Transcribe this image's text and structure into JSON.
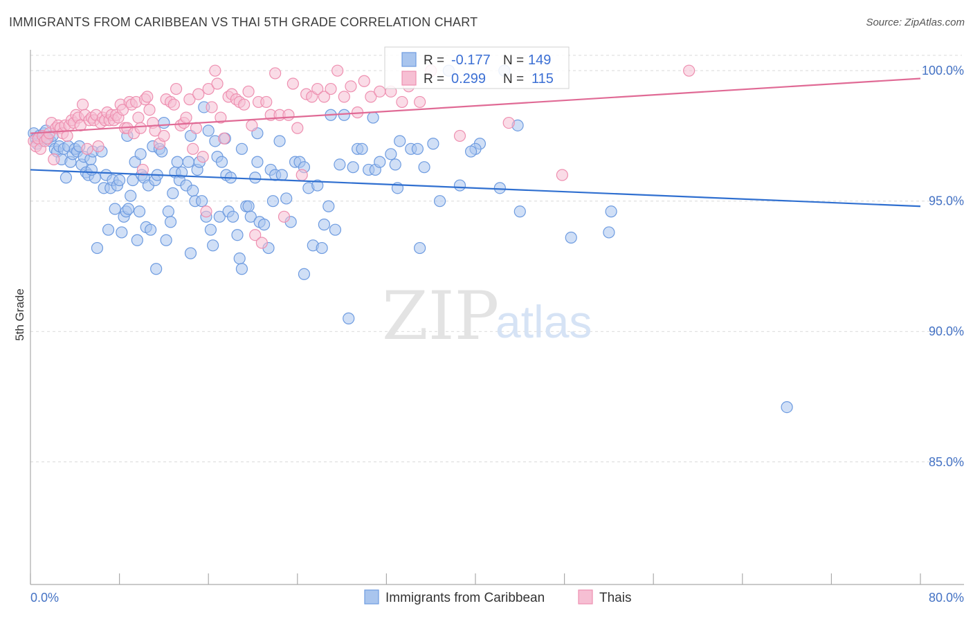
{
  "title": "IMMIGRANTS FROM CARIBBEAN VS THAI 5TH GRADE CORRELATION CHART",
  "source": "Source: ZipAtlas.com",
  "watermark": {
    "zip": "ZIP",
    "atlas": "atlas"
  },
  "colors": {
    "caribbean_fill": "#a9c5ee",
    "caribbean_stroke": "#6d9be0",
    "caribbean_line": "#2f6fd0",
    "thai_fill": "#f6bfd3",
    "thai_stroke": "#ee8fb0",
    "thai_line": "#e06a95",
    "grid": "#d9d9d9",
    "tick_text": "#4472c4"
  },
  "stats": {
    "r_label": "R =",
    "n_label": "N =",
    "caribbean": {
      "r": "-0.177",
      "n": "149"
    },
    "thai": {
      "r": "0.299",
      "n": "115"
    }
  },
  "chart_data": {
    "type": "scatter",
    "title": "IMMIGRANTS FROM CARIBBEAN VS THAI 5TH GRADE CORRELATION CHART",
    "xlabel": "",
    "ylabel": "5th Grade",
    "xlim": [
      0,
      80
    ],
    "ylim": [
      80.3,
      100.8
    ],
    "x_tick_labels": [
      "0.0%",
      "80.0%"
    ],
    "y_ticks": [
      {
        "value": 85,
        "label": "85.0%"
      },
      {
        "value": 90,
        "label": "90.0%"
      },
      {
        "value": 95,
        "label": "95.0%"
      },
      {
        "value": 100,
        "label": "100.0%"
      }
    ],
    "grid": true,
    "legend_position": "bottom-center",
    "series": [
      {
        "name": "Immigrants from Caribbean",
        "trend": {
          "x": [
            0,
            80
          ],
          "y": [
            96.2,
            94.8
          ]
        },
        "points": [
          [
            0.3,
            97.6
          ],
          [
            0.5,
            97.4
          ],
          [
            0.6,
            97.2
          ],
          [
            0.8,
            97.5
          ],
          [
            1.0,
            97.3
          ],
          [
            1.2,
            97.6
          ],
          [
            1.4,
            97.7
          ],
          [
            1.6,
            97.4
          ],
          [
            1.8,
            97.3
          ],
          [
            2.0,
            97.5
          ],
          [
            2.2,
            97.0
          ],
          [
            2.4,
            96.9
          ],
          [
            2.6,
            97.1
          ],
          [
            2.8,
            96.6
          ],
          [
            3.0,
            97.0
          ],
          [
            3.2,
            95.9
          ],
          [
            3.4,
            97.1
          ],
          [
            3.6,
            96.5
          ],
          [
            3.8,
            96.8
          ],
          [
            4.0,
            97.0
          ],
          [
            4.2,
            96.9
          ],
          [
            4.4,
            97.1
          ],
          [
            4.6,
            96.4
          ],
          [
            4.8,
            96.7
          ],
          [
            5.0,
            96.1
          ],
          [
            5.2,
            96.0
          ],
          [
            5.4,
            96.6
          ],
          [
            5.6,
            96.9
          ],
          [
            5.8,
            95.9
          ],
          [
            6.0,
            93.2
          ],
          [
            6.4,
            96.9
          ],
          [
            6.6,
            95.5
          ],
          [
            6.8,
            96.0
          ],
          [
            7.0,
            93.9
          ],
          [
            7.2,
            95.5
          ],
          [
            7.4,
            95.8
          ],
          [
            7.6,
            94.7
          ],
          [
            7.8,
            95.6
          ],
          [
            8.0,
            95.8
          ],
          [
            8.2,
            93.8
          ],
          [
            8.4,
            94.4
          ],
          [
            8.6,
            94.6
          ],
          [
            8.8,
            94.7
          ],
          [
            9.0,
            95.2
          ],
          [
            9.2,
            95.8
          ],
          [
            9.4,
            96.5
          ],
          [
            9.6,
            93.5
          ],
          [
            9.8,
            94.6
          ],
          [
            10.0,
            96.0
          ],
          [
            10.2,
            95.9
          ],
          [
            10.4,
            94.0
          ],
          [
            10.6,
            95.6
          ],
          [
            10.8,
            93.9
          ],
          [
            11.0,
            97.1
          ],
          [
            11.2,
            95.8
          ],
          [
            11.4,
            96.0
          ],
          [
            11.6,
            97.0
          ],
          [
            11.8,
            96.9
          ],
          [
            12.0,
            98.0
          ],
          [
            12.2,
            93.5
          ],
          [
            12.4,
            94.6
          ],
          [
            12.6,
            94.2
          ],
          [
            12.8,
            95.3
          ],
          [
            13.0,
            96.1
          ],
          [
            13.2,
            96.5
          ],
          [
            13.4,
            95.8
          ],
          [
            13.6,
            96.1
          ],
          [
            14.0,
            95.6
          ],
          [
            14.2,
            96.5
          ],
          [
            14.4,
            97.5
          ],
          [
            14.6,
            95.4
          ],
          [
            14.8,
            95.0
          ],
          [
            15.0,
            96.2
          ],
          [
            15.2,
            96.5
          ],
          [
            15.4,
            95.0
          ],
          [
            15.6,
            98.6
          ],
          [
            15.8,
            94.4
          ],
          [
            16.0,
            97.7
          ],
          [
            16.2,
            93.9
          ],
          [
            16.4,
            93.3
          ],
          [
            16.6,
            97.3
          ],
          [
            16.8,
            96.7
          ],
          [
            17.0,
            94.4
          ],
          [
            17.2,
            96.5
          ],
          [
            17.6,
            96.0
          ],
          [
            17.8,
            94.6
          ],
          [
            18.0,
            95.9
          ],
          [
            18.2,
            94.4
          ],
          [
            18.6,
            93.7
          ],
          [
            18.8,
            92.8
          ],
          [
            19.0,
            97.0
          ],
          [
            19.4,
            94.8
          ],
          [
            19.6,
            94.8
          ],
          [
            19.8,
            94.4
          ],
          [
            20.2,
            95.9
          ],
          [
            20.4,
            96.5
          ],
          [
            20.6,
            94.2
          ],
          [
            21.0,
            94.1
          ],
          [
            21.4,
            93.2
          ],
          [
            21.6,
            96.2
          ],
          [
            22.0,
            96.0
          ],
          [
            22.4,
            97.3
          ],
          [
            22.6,
            96.0
          ],
          [
            23.0,
            95.1
          ],
          [
            23.4,
            94.2
          ],
          [
            23.8,
            96.5
          ],
          [
            24.2,
            96.5
          ],
          [
            24.6,
            96.3
          ],
          [
            25.0,
            95.5
          ],
          [
            25.4,
            93.3
          ],
          [
            25.8,
            95.6
          ],
          [
            26.4,
            94.1
          ],
          [
            26.8,
            94.8
          ],
          [
            27.0,
            98.3
          ],
          [
            27.4,
            93.9
          ],
          [
            27.8,
            96.4
          ],
          [
            28.2,
            98.3
          ],
          [
            28.6,
            90.5
          ],
          [
            29.0,
            96.3
          ],
          [
            29.4,
            97.0
          ],
          [
            29.8,
            97.0
          ],
          [
            30.4,
            96.2
          ],
          [
            31.0,
            96.2
          ],
          [
            31.4,
            96.5
          ],
          [
            32.4,
            96.8
          ],
          [
            32.8,
            96.4
          ],
          [
            33.2,
            97.3
          ],
          [
            34.2,
            97.0
          ],
          [
            34.8,
            97.0
          ],
          [
            35.4,
            96.3
          ],
          [
            36.2,
            97.2
          ],
          [
            36.8,
            95.0
          ],
          [
            37.6,
            100.0
          ],
          [
            38.6,
            95.6
          ],
          [
            40.4,
            97.2
          ],
          [
            40.0,
            97.0
          ],
          [
            42.2,
            95.5
          ],
          [
            42.6,
            100.0
          ],
          [
            43.8,
            97.9
          ],
          [
            48.6,
            93.6
          ],
          [
            52.0,
            93.8
          ],
          [
            52.2,
            94.6
          ],
          [
            68.0,
            87.1
          ],
          [
            24.6,
            92.2
          ],
          [
            11.3,
            92.4
          ],
          [
            21.8,
            95.0
          ],
          [
            19.0,
            92.4
          ],
          [
            26.2,
            93.2
          ],
          [
            33.0,
            95.5
          ],
          [
            44.0,
            94.6
          ],
          [
            14.4,
            93.0
          ],
          [
            8.7,
            97.5
          ],
          [
            20.4,
            97.6
          ],
          [
            30.8,
            98.2
          ],
          [
            39.6,
            96.9
          ],
          [
            17.5,
            97.4
          ],
          [
            9.9,
            96.8
          ],
          [
            5.5,
            96.2
          ],
          [
            35.0,
            93.2
          ]
        ]
      },
      {
        "name": "Thais",
        "trend": {
          "x": [
            0,
            80
          ],
          "y": [
            97.6,
            99.7
          ]
        },
        "points": [
          [
            0.3,
            97.3
          ],
          [
            0.5,
            97.1
          ],
          [
            0.7,
            97.4
          ],
          [
            0.9,
            97.0
          ],
          [
            1.1,
            97.5
          ],
          [
            1.3,
            97.3
          ],
          [
            1.5,
            97.4
          ],
          [
            1.7,
            97.6
          ],
          [
            1.9,
            98.0
          ],
          [
            2.1,
            96.6
          ],
          [
            2.3,
            97.8
          ],
          [
            2.5,
            97.9
          ],
          [
            2.7,
            97.8
          ],
          [
            2.9,
            97.6
          ],
          [
            3.1,
            97.9
          ],
          [
            3.3,
            97.5
          ],
          [
            3.5,
            97.9
          ],
          [
            3.7,
            98.1
          ],
          [
            3.9,
            98.0
          ],
          [
            4.1,
            98.3
          ],
          [
            4.3,
            98.2
          ],
          [
            4.5,
            97.9
          ],
          [
            4.7,
            98.7
          ],
          [
            4.9,
            98.3
          ],
          [
            5.1,
            97.0
          ],
          [
            5.3,
            98.1
          ],
          [
            5.5,
            98.2
          ],
          [
            5.7,
            98.1
          ],
          [
            5.9,
            98.3
          ],
          [
            6.1,
            97.1
          ],
          [
            6.3,
            98.0
          ],
          [
            6.5,
            98.2
          ],
          [
            6.7,
            98.1
          ],
          [
            6.9,
            98.4
          ],
          [
            7.1,
            98.1
          ],
          [
            7.3,
            98.3
          ],
          [
            7.5,
            98.1
          ],
          [
            7.7,
            98.3
          ],
          [
            7.9,
            98.2
          ],
          [
            8.1,
            98.7
          ],
          [
            8.3,
            98.5
          ],
          [
            8.5,
            97.8
          ],
          [
            8.7,
            97.8
          ],
          [
            8.9,
            98.8
          ],
          [
            9.1,
            98.7
          ],
          [
            9.3,
            97.6
          ],
          [
            9.5,
            98.8
          ],
          [
            9.7,
            98.2
          ],
          [
            9.9,
            97.8
          ],
          [
            10.1,
            96.2
          ],
          [
            10.3,
            98.9
          ],
          [
            10.5,
            99.0
          ],
          [
            10.7,
            98.5
          ],
          [
            11.0,
            98.0
          ],
          [
            11.2,
            97.7
          ],
          [
            11.6,
            97.2
          ],
          [
            12.0,
            97.5
          ],
          [
            12.2,
            98.9
          ],
          [
            12.6,
            98.8
          ],
          [
            12.9,
            98.7
          ],
          [
            13.1,
            99.3
          ],
          [
            13.5,
            97.9
          ],
          [
            13.8,
            98.0
          ],
          [
            14.0,
            98.2
          ],
          [
            14.3,
            98.9
          ],
          [
            14.6,
            97.0
          ],
          [
            14.9,
            97.8
          ],
          [
            15.1,
            99.1
          ],
          [
            15.5,
            96.7
          ],
          [
            15.8,
            94.6
          ],
          [
            16.0,
            99.3
          ],
          [
            16.3,
            98.6
          ],
          [
            16.6,
            100.0
          ],
          [
            16.8,
            99.5
          ],
          [
            17.1,
            98.2
          ],
          [
            17.4,
            97.4
          ],
          [
            17.8,
            99.0
          ],
          [
            18.1,
            99.1
          ],
          [
            18.5,
            98.9
          ],
          [
            18.8,
            98.8
          ],
          [
            19.2,
            98.7
          ],
          [
            19.6,
            99.2
          ],
          [
            19.9,
            97.9
          ],
          [
            20.2,
            93.7
          ],
          [
            20.5,
            98.8
          ],
          [
            20.8,
            93.4
          ],
          [
            21.2,
            98.8
          ],
          [
            21.6,
            98.3
          ],
          [
            22.0,
            99.9
          ],
          [
            22.4,
            98.3
          ],
          [
            22.8,
            94.4
          ],
          [
            23.2,
            98.3
          ],
          [
            23.6,
            99.5
          ],
          [
            24.0,
            97.8
          ],
          [
            24.4,
            96.0
          ],
          [
            24.8,
            99.1
          ],
          [
            25.3,
            99.0
          ],
          [
            25.8,
            99.3
          ],
          [
            26.4,
            99.0
          ],
          [
            27.0,
            99.3
          ],
          [
            27.6,
            100.0
          ],
          [
            28.2,
            99.0
          ],
          [
            28.8,
            99.4
          ],
          [
            29.4,
            98.4
          ],
          [
            30.0,
            99.6
          ],
          [
            30.6,
            99.0
          ],
          [
            31.4,
            99.2
          ],
          [
            32.4,
            99.2
          ],
          [
            33.4,
            98.8
          ],
          [
            34.0,
            99.4
          ],
          [
            35.0,
            98.8
          ],
          [
            36.0,
            100.0
          ],
          [
            43.0,
            98.0
          ],
          [
            47.8,
            96.0
          ],
          [
            59.2,
            100.0
          ],
          [
            38.6,
            97.5
          ]
        ]
      }
    ]
  },
  "legend": {
    "items": [
      {
        "label": "Immigrants from Caribbean"
      },
      {
        "label": "Thais"
      }
    ]
  }
}
